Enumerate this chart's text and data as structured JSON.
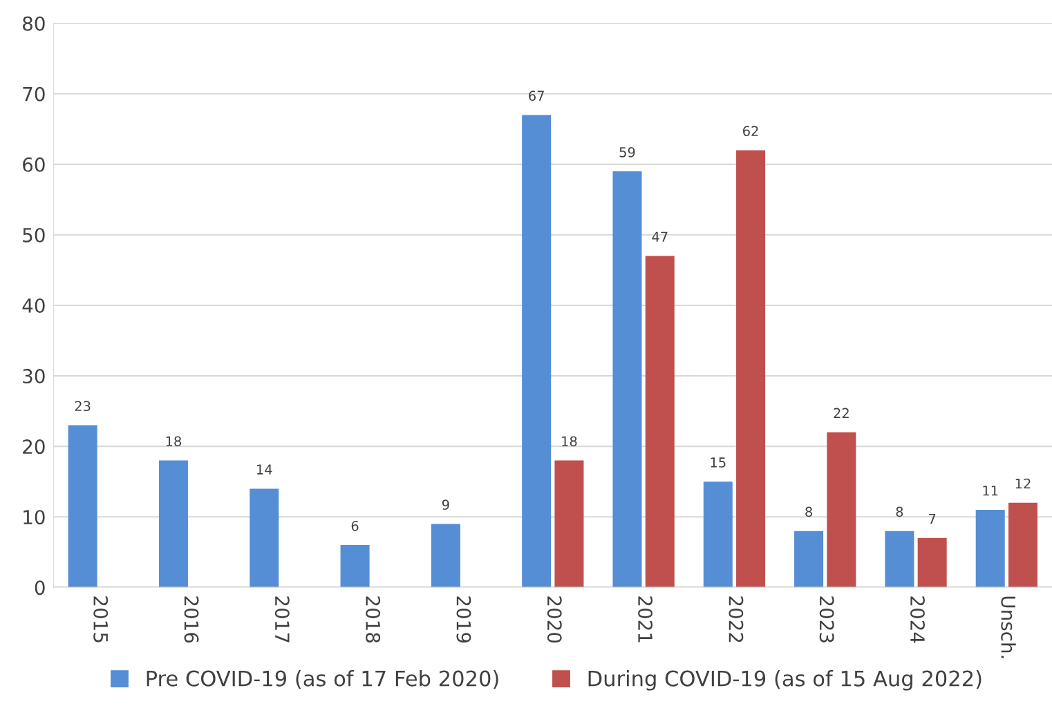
{
  "chart_data": {
    "type": "bar",
    "categories": [
      "2015",
      "2016",
      "2017",
      "2018",
      "2019",
      "2020",
      "2021",
      "2022",
      "2023",
      "2024",
      "Unsch."
    ],
    "series": [
      {
        "name": "Pre COVID-19 (as of 17 Feb 2020)",
        "color": "#558ed5",
        "values": [
          23,
          18,
          14,
          6,
          9,
          67,
          59,
          15,
          8,
          8,
          11
        ]
      },
      {
        "name": "During COVID-19 (as of 15 Aug 2022)",
        "color": "#c0504d",
        "values": [
          null,
          null,
          null,
          null,
          null,
          18,
          47,
          62,
          22,
          7,
          12
        ]
      }
    ],
    "ylim": [
      0,
      80
    ],
    "yticks": [
      0,
      10,
      20,
      30,
      40,
      50,
      60,
      70,
      80
    ],
    "grid": "y",
    "legend": "bottom",
    "data_labels": true
  }
}
